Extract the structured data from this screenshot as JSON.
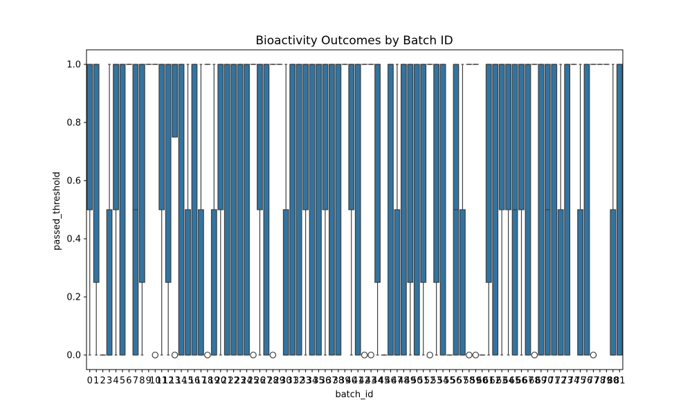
{
  "chart_data": {
    "type": "boxplot",
    "title": "Bioactivity Outcomes by Batch ID",
    "xlabel": "batch_id",
    "ylabel": "passed_threshold",
    "ylim": [
      -0.05,
      1.05
    ],
    "yticks": [
      0.0,
      0.2,
      0.4,
      0.6,
      0.8,
      1.0
    ],
    "yticklabels": [
      "0.0",
      "0.2",
      "0.4",
      "0.6",
      "0.8",
      "1.0"
    ],
    "grid": false,
    "legend": "none",
    "colors": {
      "box": "#3274a1",
      "line": "#3d3d3d",
      "axis": "#000000"
    },
    "categories": [
      "0",
      "1",
      "2",
      "3",
      "4",
      "5",
      "6",
      "7",
      "8",
      "9",
      "10",
      "11",
      "12",
      "13",
      "14",
      "15",
      "16",
      "17",
      "18",
      "19",
      "20",
      "21",
      "22",
      "23",
      "24",
      "25",
      "26",
      "27",
      "28",
      "29",
      "30",
      "31",
      "32",
      "33",
      "34",
      "35",
      "36",
      "37",
      "38",
      "39",
      "40",
      "41",
      "42",
      "43",
      "44",
      "45",
      "46",
      "47",
      "48",
      "49",
      "50",
      "51",
      "52",
      "53",
      "54",
      "55",
      "56",
      "57",
      "58",
      "59",
      "60",
      "61",
      "62",
      "63",
      "64",
      "65",
      "66",
      "67",
      "68",
      "69",
      "70",
      "71",
      "72",
      "73",
      "74",
      "75",
      "76",
      "77",
      "78",
      "79",
      "80",
      "81"
    ],
    "boxes": [
      {
        "q1": 0.5,
        "median": 0.5,
        "q3": 1,
        "whislo": 0,
        "whishi": 1,
        "fliers": []
      },
      {
        "q1": 0.25,
        "median": 1,
        "q3": 1,
        "whislo": 0,
        "whishi": 1,
        "fliers": []
      },
      {
        "q1": 0,
        "median": 0,
        "q3": 0,
        "whislo": 0,
        "whishi": 0,
        "fliers": []
      },
      {
        "q1": 0,
        "median": 0,
        "q3": 0.5,
        "whislo": 0,
        "whishi": 1,
        "fliers": []
      },
      {
        "q1": 0.5,
        "median": 1,
        "q3": 1,
        "whislo": 0,
        "whishi": 1,
        "fliers": []
      },
      {
        "q1": 0,
        "median": 1,
        "q3": 1,
        "whislo": 0,
        "whishi": 1,
        "fliers": []
      },
      {
        "q1": 1,
        "median": 1,
        "q3": 1,
        "whislo": 1,
        "whishi": 1,
        "fliers": []
      },
      {
        "q1": 0,
        "median": 0.5,
        "q3": 1,
        "whislo": 0,
        "whishi": 1,
        "fliers": []
      },
      {
        "q1": 0.25,
        "median": 1,
        "q3": 1,
        "whislo": 0,
        "whishi": 1,
        "fliers": []
      },
      {
        "q1": 1,
        "median": 1,
        "q3": 1,
        "whislo": 1,
        "whishi": 1,
        "fliers": []
      },
      {
        "q1": 1,
        "median": 1,
        "q3": 1,
        "whislo": 1,
        "whishi": 1,
        "fliers": [
          0
        ]
      },
      {
        "q1": 0.5,
        "median": 1,
        "q3": 1,
        "whislo": 0,
        "whishi": 1,
        "fliers": []
      },
      {
        "q1": 0.25,
        "median": 1,
        "q3": 1,
        "whislo": 0,
        "whishi": 1,
        "fliers": []
      },
      {
        "q1": 0.75,
        "median": 1,
        "q3": 1,
        "whislo": 0.75,
        "whishi": 1,
        "fliers": [
          0
        ]
      },
      {
        "q1": 0,
        "median": 1,
        "q3": 1,
        "whislo": 0,
        "whishi": 1,
        "fliers": []
      },
      {
        "q1": 0,
        "median": 0,
        "q3": 0.5,
        "whislo": 0,
        "whishi": 1,
        "fliers": []
      },
      {
        "q1": 0,
        "median": 1,
        "q3": 1,
        "whislo": 0,
        "whishi": 1,
        "fliers": []
      },
      {
        "q1": 0,
        "median": 0,
        "q3": 0.5,
        "whislo": 0,
        "whishi": 1,
        "fliers": []
      },
      {
        "q1": 1,
        "median": 1,
        "q3": 1,
        "whislo": 1,
        "whishi": 1,
        "fliers": [
          0
        ]
      },
      {
        "q1": 0,
        "median": 0,
        "q3": 0.5,
        "whislo": 0,
        "whishi": 1,
        "fliers": []
      },
      {
        "q1": 0.5,
        "median": 1,
        "q3": 1,
        "whislo": 0,
        "whishi": 1,
        "fliers": []
      },
      {
        "q1": 0,
        "median": 1,
        "q3": 1,
        "whislo": 0,
        "whishi": 1,
        "fliers": []
      },
      {
        "q1": 0,
        "median": 1,
        "q3": 1,
        "whislo": 0,
        "whishi": 1,
        "fliers": []
      },
      {
        "q1": 0,
        "median": 1,
        "q3": 1,
        "whislo": 0,
        "whishi": 1,
        "fliers": []
      },
      {
        "q1": 0,
        "median": 1,
        "q3": 1,
        "whislo": 0,
        "whishi": 1,
        "fliers": []
      },
      {
        "q1": 1,
        "median": 1,
        "q3": 1,
        "whislo": 1,
        "whishi": 1,
        "fliers": [
          0
        ]
      },
      {
        "q1": 0.5,
        "median": 1,
        "q3": 1,
        "whislo": 0,
        "whishi": 1,
        "fliers": []
      },
      {
        "q1": 0,
        "median": 1,
        "q3": 1,
        "whislo": 0,
        "whishi": 1,
        "fliers": []
      },
      {
        "q1": 1,
        "median": 1,
        "q3": 1,
        "whislo": 1,
        "whishi": 1,
        "fliers": [
          0
        ]
      },
      {
        "q1": 1,
        "median": 1,
        "q3": 1,
        "whislo": 1,
        "whishi": 1,
        "fliers": []
      },
      {
        "q1": 0,
        "median": 0,
        "q3": 0.5,
        "whislo": 0,
        "whishi": 1,
        "fliers": []
      },
      {
        "q1": 0,
        "median": 1,
        "q3": 1,
        "whislo": 0,
        "whishi": 1,
        "fliers": []
      },
      {
        "q1": 0,
        "median": 1,
        "q3": 1,
        "whislo": 0,
        "whishi": 1,
        "fliers": []
      },
      {
        "q1": 0.5,
        "median": 1,
        "q3": 1,
        "whislo": 0,
        "whishi": 1,
        "fliers": []
      },
      {
        "q1": 0,
        "median": 1,
        "q3": 1,
        "whislo": 0,
        "whishi": 1,
        "fliers": []
      },
      {
        "q1": 0,
        "median": 1,
        "q3": 1,
        "whislo": 0,
        "whishi": 1,
        "fliers": []
      },
      {
        "q1": 0.5,
        "median": 1,
        "q3": 1,
        "whislo": 0,
        "whishi": 1,
        "fliers": []
      },
      {
        "q1": 0,
        "median": 1,
        "q3": 1,
        "whislo": 0,
        "whishi": 1,
        "fliers": []
      },
      {
        "q1": 0,
        "median": 1,
        "q3": 1,
        "whislo": 0,
        "whishi": 1,
        "fliers": []
      },
      {
        "q1": 1,
        "median": 1,
        "q3": 1,
        "whislo": 1,
        "whishi": 1,
        "fliers": []
      },
      {
        "q1": 0.5,
        "median": 1,
        "q3": 1,
        "whislo": 0,
        "whishi": 1,
        "fliers": []
      },
      {
        "q1": 0,
        "median": 1,
        "q3": 1,
        "whislo": 0,
        "whishi": 1,
        "fliers": []
      },
      {
        "q1": 1,
        "median": 1,
        "q3": 1,
        "whislo": 1,
        "whishi": 1,
        "fliers": [
          0
        ]
      },
      {
        "q1": 1,
        "median": 1,
        "q3": 1,
        "whislo": 1,
        "whishi": 1,
        "fliers": [
          0
        ]
      },
      {
        "q1": 0.25,
        "median": 1,
        "q3": 1,
        "whislo": 0,
        "whishi": 1,
        "fliers": []
      },
      {
        "q1": 0,
        "median": 0,
        "q3": 0,
        "whislo": 0,
        "whishi": 0,
        "fliers": []
      },
      {
        "q1": 0,
        "median": 1,
        "q3": 1,
        "whislo": 0,
        "whishi": 1,
        "fliers": []
      },
      {
        "q1": 0,
        "median": 0,
        "q3": 0.5,
        "whislo": 0,
        "whishi": 1,
        "fliers": []
      },
      {
        "q1": 0,
        "median": 1,
        "q3": 1,
        "whislo": 0,
        "whishi": 1,
        "fliers": []
      },
      {
        "q1": 0.25,
        "median": 1,
        "q3": 1,
        "whislo": 0,
        "whishi": 1,
        "fliers": []
      },
      {
        "q1": 0,
        "median": 0,
        "q3": 1,
        "whislo": 0,
        "whishi": 1,
        "fliers": []
      },
      {
        "q1": 0.25,
        "median": 1,
        "q3": 1,
        "whislo": 0,
        "whishi": 1,
        "fliers": []
      },
      {
        "q1": 1,
        "median": 1,
        "q3": 1,
        "whislo": 1,
        "whishi": 1,
        "fliers": [
          0
        ]
      },
      {
        "q1": 0.25,
        "median": 1,
        "q3": 1,
        "whislo": 0,
        "whishi": 1,
        "fliers": []
      },
      {
        "q1": 0,
        "median": 1,
        "q3": 1,
        "whislo": 0,
        "whishi": 1,
        "fliers": []
      },
      {
        "q1": 0,
        "median": 0,
        "q3": 0,
        "whislo": 0,
        "whishi": 0,
        "fliers": []
      },
      {
        "q1": 0,
        "median": 0.5,
        "q3": 1,
        "whislo": 0,
        "whishi": 1,
        "fliers": []
      },
      {
        "q1": 0,
        "median": 0,
        "q3": 0.5,
        "whislo": 0,
        "whishi": 1,
        "fliers": []
      },
      {
        "q1": 1,
        "median": 1,
        "q3": 1,
        "whislo": 1,
        "whishi": 1,
        "fliers": [
          0
        ]
      },
      {
        "q1": 1,
        "median": 1,
        "q3": 1,
        "whislo": 1,
        "whishi": 1,
        "fliers": [
          0
        ]
      },
      {
        "q1": 0,
        "median": 0,
        "q3": 0,
        "whislo": 0,
        "whishi": 0,
        "fliers": []
      },
      {
        "q1": 0.25,
        "median": 1,
        "q3": 1,
        "whislo": 0,
        "whishi": 1,
        "fliers": []
      },
      {
        "q1": 0,
        "median": 1,
        "q3": 1,
        "whislo": 0,
        "whishi": 1,
        "fliers": []
      },
      {
        "q1": 0.5,
        "median": 1,
        "q3": 1,
        "whislo": 0,
        "whishi": 1,
        "fliers": []
      },
      {
        "q1": 0.5,
        "median": 1,
        "q3": 1,
        "whislo": 0,
        "whishi": 1,
        "fliers": []
      },
      {
        "q1": 0,
        "median": 0.5,
        "q3": 1,
        "whislo": 0,
        "whishi": 1,
        "fliers": []
      },
      {
        "q1": 0.5,
        "median": 1,
        "q3": 1,
        "whislo": 0,
        "whishi": 1,
        "fliers": []
      },
      {
        "q1": 0,
        "median": 1,
        "q3": 1,
        "whislo": 0,
        "whishi": 1,
        "fliers": []
      },
      {
        "q1": 1,
        "median": 1,
        "q3": 1,
        "whislo": 1,
        "whishi": 1,
        "fliers": [
          0
        ]
      },
      {
        "q1": 0,
        "median": 1,
        "q3": 1,
        "whislo": 0,
        "whishi": 1,
        "fliers": []
      },
      {
        "q1": 0,
        "median": 0.5,
        "q3": 1,
        "whislo": 0,
        "whishi": 1,
        "fliers": []
      },
      {
        "q1": 0,
        "median": 1,
        "q3": 1,
        "whislo": 0,
        "whishi": 1,
        "fliers": []
      },
      {
        "q1": 0,
        "median": 0,
        "q3": 0.5,
        "whislo": 0,
        "whishi": 1,
        "fliers": []
      },
      {
        "q1": 0,
        "median": 1,
        "q3": 1,
        "whislo": 0,
        "whishi": 1,
        "fliers": []
      },
      {
        "q1": 1,
        "median": 1,
        "q3": 1,
        "whislo": 1,
        "whishi": 1,
        "fliers": []
      },
      {
        "q1": 0,
        "median": 0,
        "q3": 0.5,
        "whislo": 0,
        "whishi": 1,
        "fliers": []
      },
      {
        "q1": 0,
        "median": 1,
        "q3": 1,
        "whislo": 0,
        "whishi": 1,
        "fliers": []
      },
      {
        "q1": 1,
        "median": 1,
        "q3": 1,
        "whislo": 1,
        "whishi": 1,
        "fliers": [
          0
        ]
      },
      {
        "q1": 1,
        "median": 1,
        "q3": 1,
        "whislo": 1,
        "whishi": 1,
        "fliers": []
      },
      {
        "q1": 1,
        "median": 1,
        "q3": 1,
        "whislo": 1,
        "whishi": 1,
        "fliers": []
      },
      {
        "q1": 0,
        "median": 0,
        "q3": 0.5,
        "whislo": 0,
        "whishi": 1,
        "fliers": []
      },
      {
        "q1": 0,
        "median": 1,
        "q3": 1,
        "whislo": 0,
        "whishi": 1,
        "fliers": []
      }
    ]
  }
}
